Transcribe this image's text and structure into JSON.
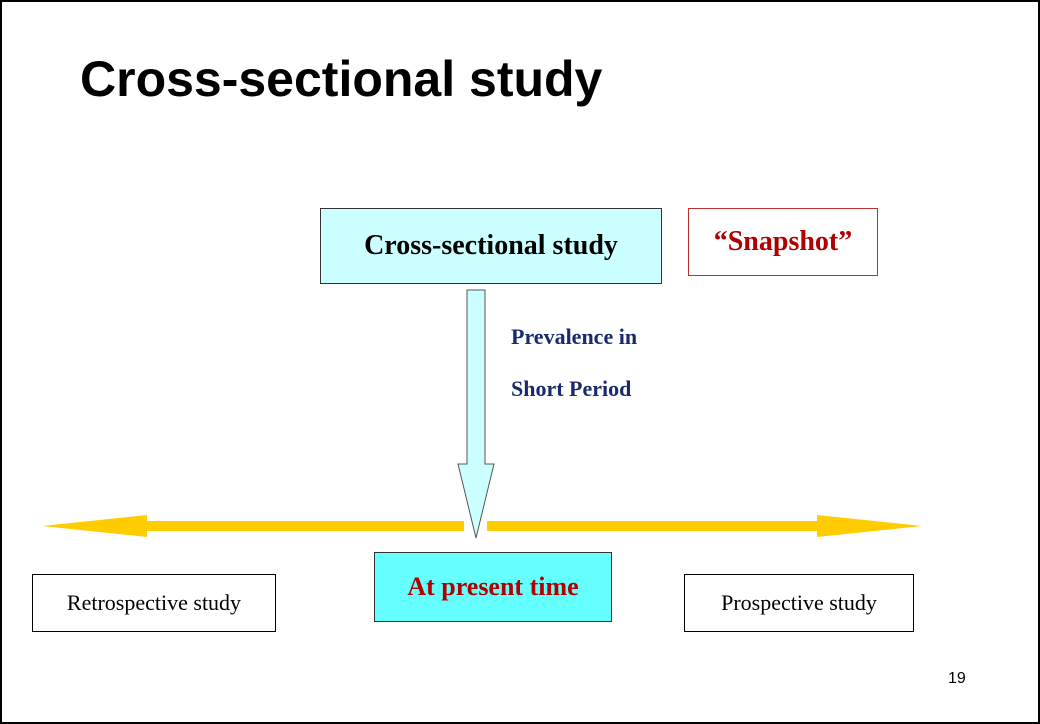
{
  "title": "Cross-sectional study",
  "nodes": [
    {
      "label": "Cross-sectional study"
    },
    {
      "label": "“Snapshot”"
    },
    {
      "label": "Retrospective study"
    },
    {
      "label": "At present time"
    },
    {
      "label": "Prospective study"
    }
  ],
  "arrow_label": [
    "Prevalence in",
    "Short Period"
  ],
  "page_number": "19"
}
